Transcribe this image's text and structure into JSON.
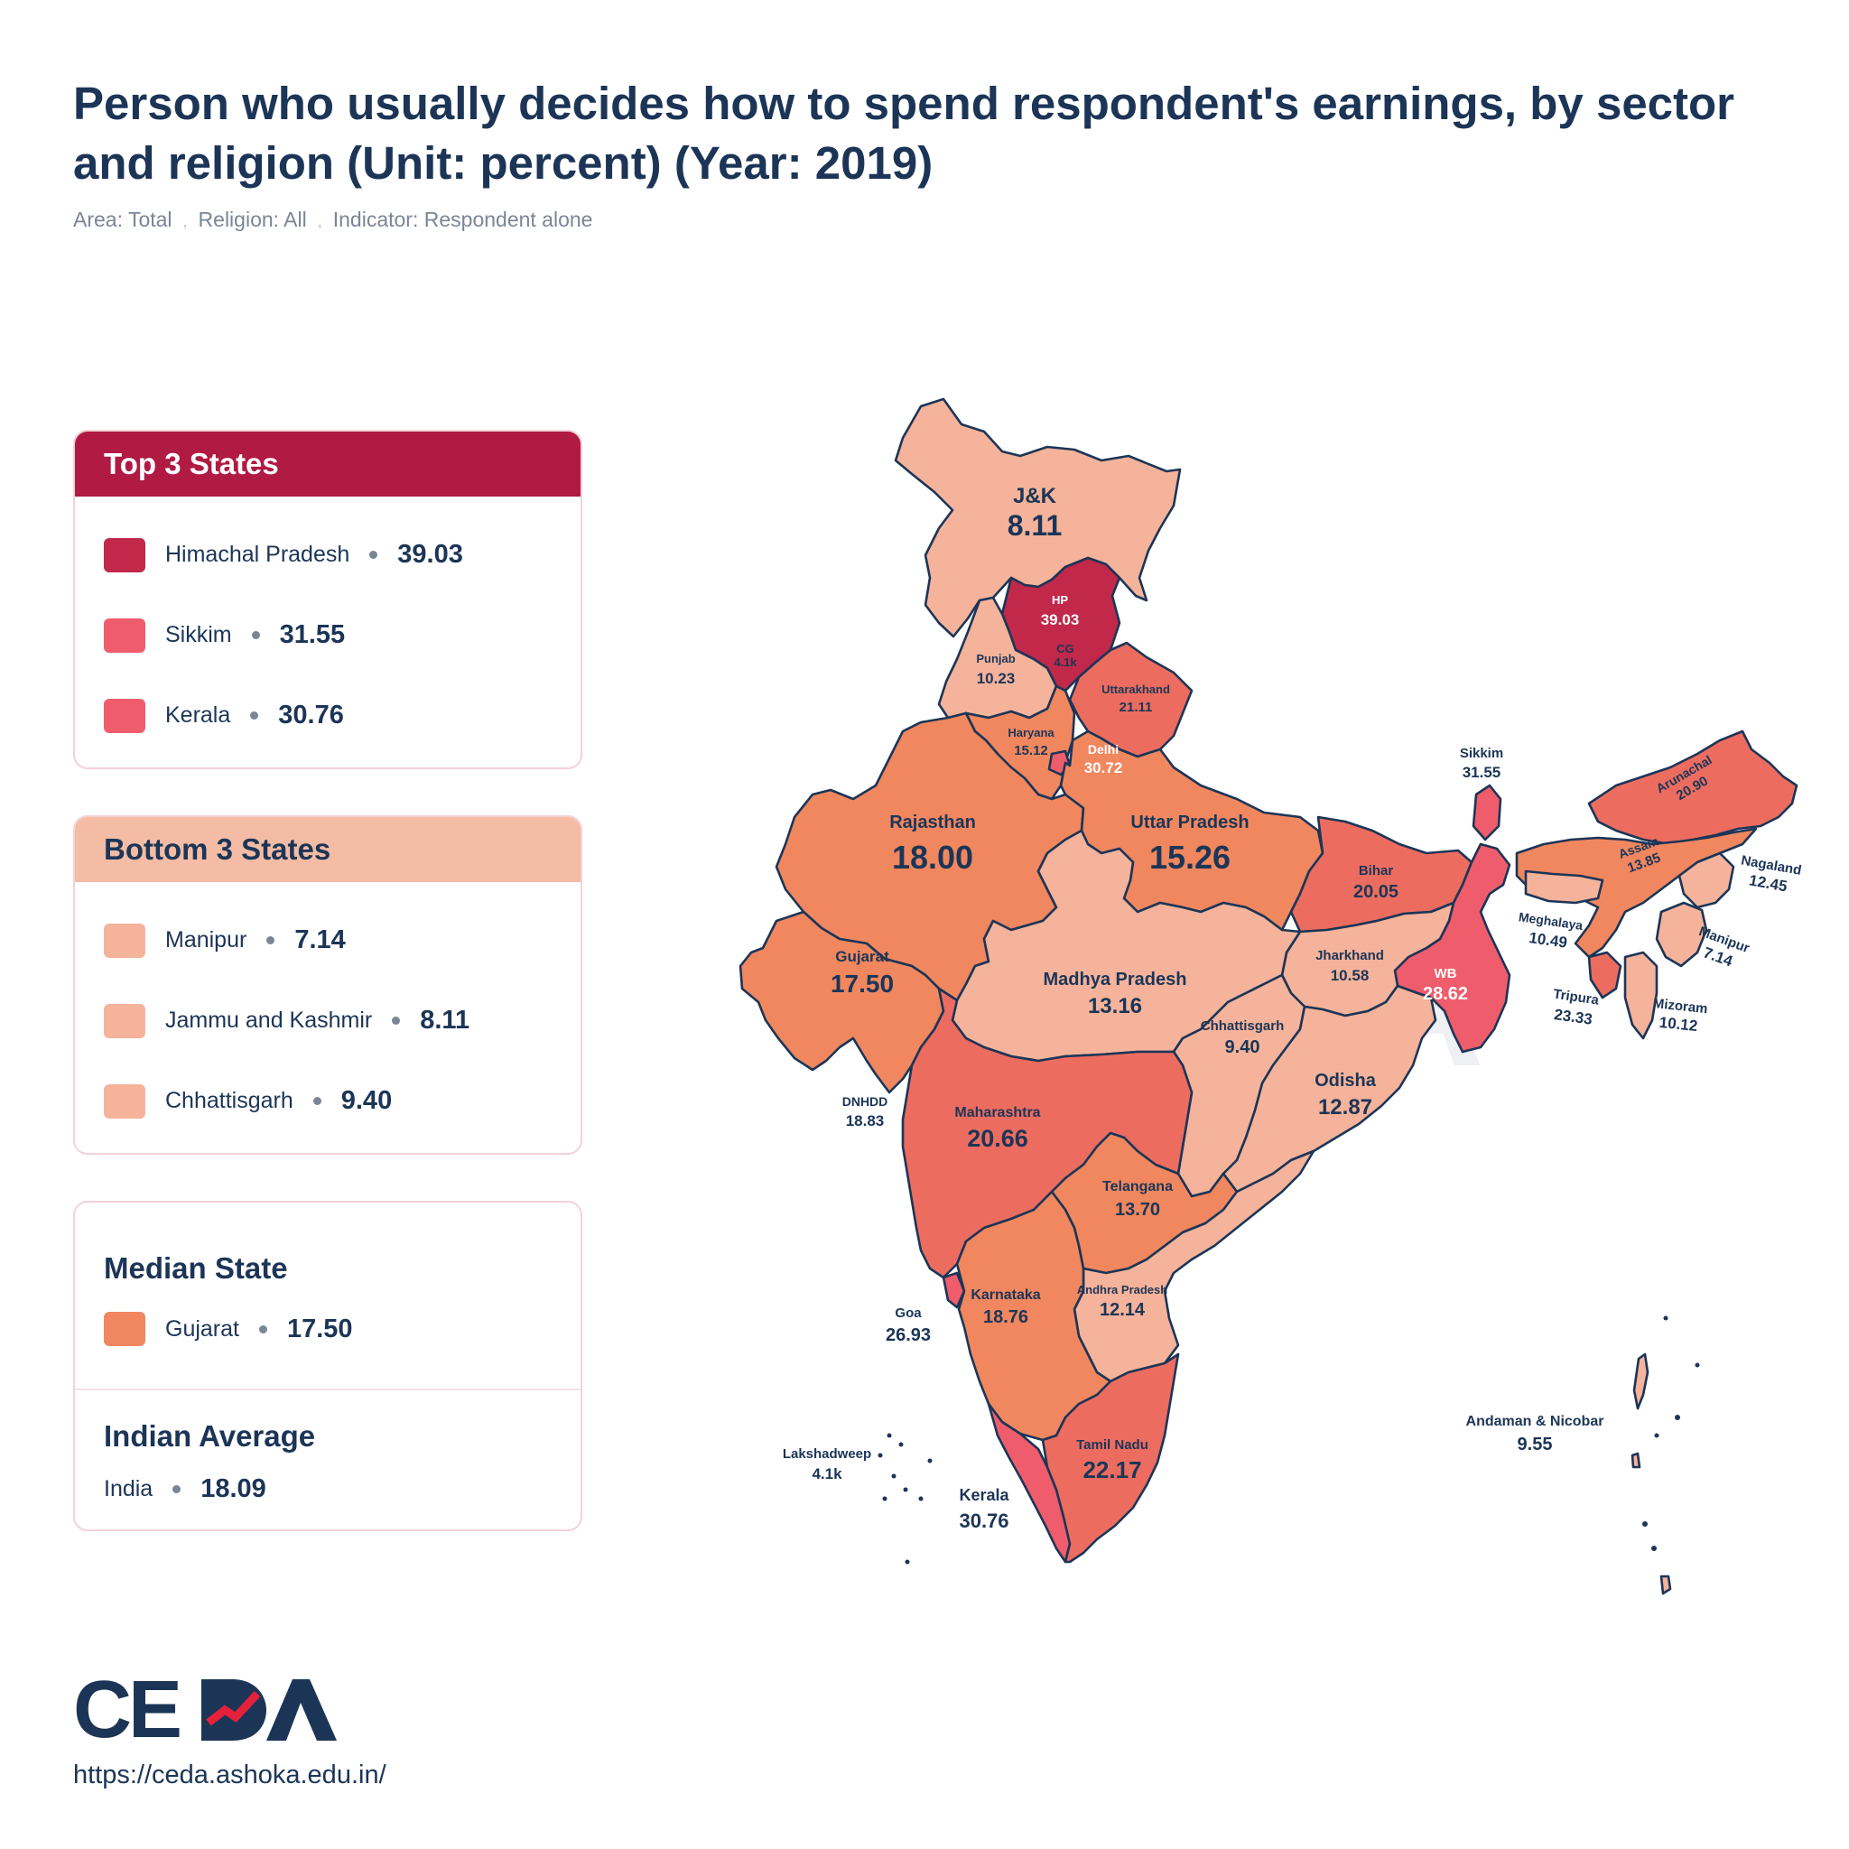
{
  "title": "Person who usually decides how to spend respondent's earnings, by sector and religion (Unit: percent) (Year: 2019)",
  "filters": [
    "Area: Total",
    "Religion: All",
    "Indicator: Respondent alone"
  ],
  "top3": {
    "heading": "Top 3 States",
    "items": [
      {
        "name": "Himachal Pradesh",
        "value": "39.03",
        "color": "#c1284a"
      },
      {
        "name": "Sikkim",
        "value": "31.55",
        "color": "#ef5d6c"
      },
      {
        "name": "Kerala",
        "value": "30.76",
        "color": "#ef5d6c"
      }
    ]
  },
  "bottom3": {
    "heading": "Bottom 3 States",
    "items": [
      {
        "name": "Manipur",
        "value": "7.14",
        "color": "#f4b39a"
      },
      {
        "name": "Jammu and Kashmir",
        "value": "8.11",
        "color": "#f4b39a"
      },
      {
        "name": "Chhattisgarh",
        "value": "9.40",
        "color": "#f4b39a"
      }
    ]
  },
  "median": {
    "heading": "Median State",
    "name": "Gujarat",
    "value": "17.50",
    "color": "#f0875f"
  },
  "average": {
    "heading": "Indian Average",
    "name": "India",
    "value": "18.09"
  },
  "logo": {
    "text": "CEDA"
  },
  "url": "https://ceda.ashoka.edu.in/",
  "map_labels": {
    "jk": {
      "name": "J&K",
      "value": "8.11"
    },
    "hp": {
      "name": "HP",
      "value": "39.03"
    },
    "cg": {
      "name": "CG",
      "value": "4.1k"
    },
    "punjab": {
      "name": "Punjab",
      "value": "10.23"
    },
    "uttarakhand": {
      "name": "Uttarakhand",
      "value": "21.11"
    },
    "haryana": {
      "name": "Haryana",
      "value": "15.12"
    },
    "delhi": {
      "name": "Delhi",
      "value": "30.72"
    },
    "rajasthan": {
      "name": "Rajasthan",
      "value": "18.00"
    },
    "up": {
      "name": "Uttar Pradesh",
      "value": "15.26"
    },
    "sikkim": {
      "name": "Sikkim",
      "value": "31.55"
    },
    "arunachal": {
      "name": "Arunachal",
      "value": "20.90"
    },
    "assam": {
      "name": "Assam",
      "value": "13.85"
    },
    "nagaland": {
      "name": "Nagaland",
      "value": "12.45"
    },
    "bihar": {
      "name": "Bihar",
      "value": "20.05"
    },
    "meghalaya": {
      "name": "Meghalaya",
      "value": "10.49"
    },
    "manipur": {
      "name": "Manipur",
      "value": "7.14"
    },
    "gujarat": {
      "name": "Gujarat",
      "value": "17.50"
    },
    "mp": {
      "name": "Madhya Pradesh",
      "value": "13.16"
    },
    "jharkhand": {
      "name": "Jharkhand",
      "value": "10.58"
    },
    "wb": {
      "name": "WB",
      "value": "28.62"
    },
    "tripura": {
      "name": "Tripura",
      "value": "23.33"
    },
    "mizoram": {
      "name": "Mizoram",
      "value": "10.12"
    },
    "chhattisgarh": {
      "name": "Chhattisgarh",
      "value": "9.40"
    },
    "odisha": {
      "name": "Odisha",
      "value": "12.87"
    },
    "dnhdd": {
      "name": "DNHDD",
      "value": "18.83"
    },
    "maharashtra": {
      "name": "Maharashtra",
      "value": "20.66"
    },
    "telangana": {
      "name": "Telangana",
      "value": "13.70"
    },
    "andhra": {
      "name": "Andhra Pradesh",
      "value": "12.14"
    },
    "goa": {
      "name": "Goa",
      "value": "26.93"
    },
    "karnataka": {
      "name": "Karnataka",
      "value": "18.76"
    },
    "andaman": {
      "name": "Andaman & Nicobar",
      "value": "9.55"
    },
    "lakshadweep": {
      "name": "Lakshadweep",
      "value": "4.1k"
    },
    "tamilnadu": {
      "name": "Tamil Nadu",
      "value": "22.17"
    },
    "kerala": {
      "name": "Kerala",
      "value": "30.76"
    }
  }
}
